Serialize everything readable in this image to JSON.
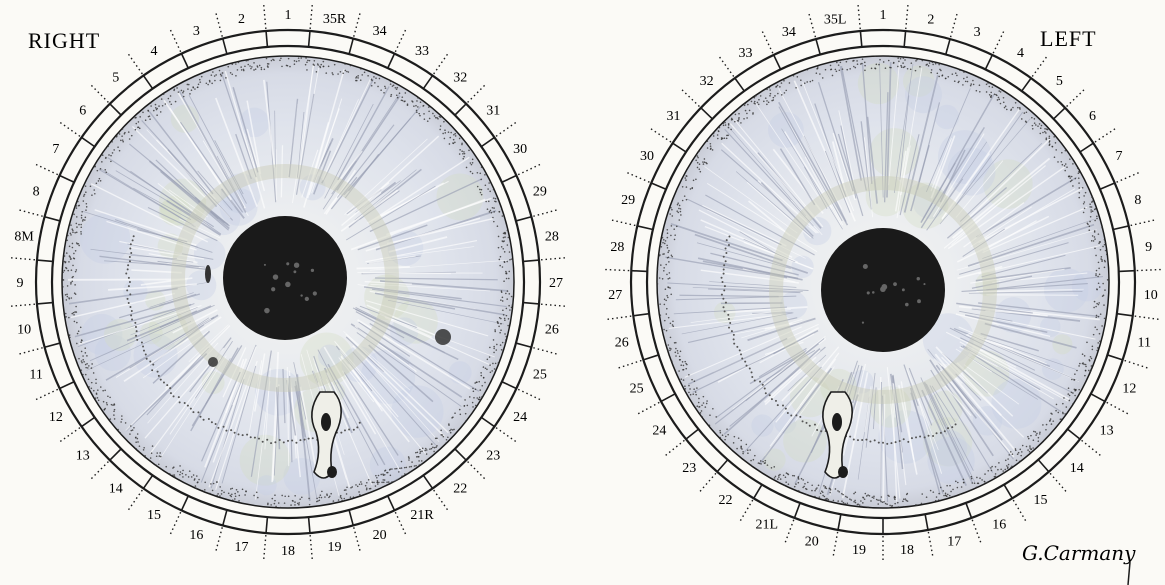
{
  "right_eye": {
    "label": "RIGHT",
    "zones": [
      "1",
      "2",
      "3",
      "4",
      "5",
      "6",
      "7",
      "8",
      "8M",
      "9",
      "10",
      "11",
      "12",
      "13",
      "14",
      "15",
      "16",
      "17",
      "18",
      "19",
      "20",
      "21R",
      "22",
      "23",
      "24",
      "25",
      "26",
      "27",
      "28",
      "29",
      "30",
      "31",
      "32",
      "33",
      "34",
      "35R"
    ]
  },
  "left_eye": {
    "label": "LEFT",
    "zones": [
      "1",
      "2",
      "3",
      "4",
      "5",
      "6",
      "7",
      "8",
      "9",
      "10",
      "11",
      "12",
      "13",
      "14",
      "15",
      "16",
      "17",
      "18",
      "19",
      "20",
      "21L",
      "22",
      "23",
      "24",
      "25",
      "26",
      "27",
      "28",
      "29",
      "30",
      "31",
      "32",
      "33",
      "34",
      "35L"
    ]
  },
  "signature": "G.Carmany",
  "colors": {
    "iris_base": "#e4e6ec",
    "iris_blue": "#c7cde4",
    "iris_green": "#d5dcc4",
    "pupil": "#1a1a1a",
    "ink": "#1c1c1c",
    "paper": "#fbfaf6"
  }
}
